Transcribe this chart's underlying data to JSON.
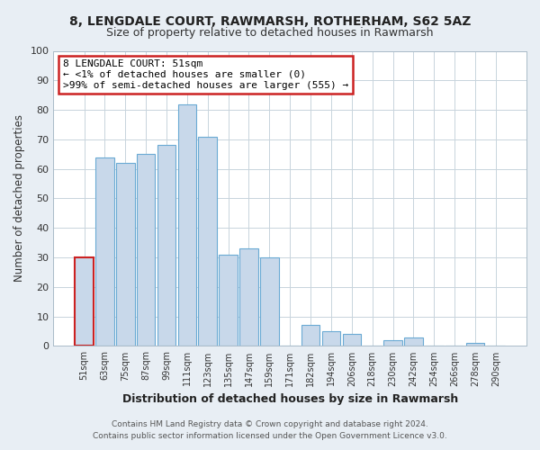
{
  "title": "8, LENGDALE COURT, RAWMARSH, ROTHERHAM, S62 5AZ",
  "subtitle": "Size of property relative to detached houses in Rawmarsh",
  "xlabel": "Distribution of detached houses by size in Rawmarsh",
  "ylabel": "Number of detached properties",
  "bar_labels": [
    "51sqm",
    "63sqm",
    "75sqm",
    "87sqm",
    "99sqm",
    "111sqm",
    "123sqm",
    "135sqm",
    "147sqm",
    "159sqm",
    "171sqm",
    "182sqm",
    "194sqm",
    "206sqm",
    "218sqm",
    "230sqm",
    "242sqm",
    "254sqm",
    "266sqm",
    "278sqm",
    "290sqm"
  ],
  "bar_heights": [
    30,
    64,
    62,
    65,
    68,
    82,
    71,
    31,
    33,
    30,
    0,
    7,
    5,
    4,
    0,
    2,
    3,
    0,
    0,
    1,
    0
  ],
  "bar_color": "#c8d8ea",
  "bar_edge_color": "#6aaad4",
  "highlight_bar_index": 0,
  "highlight_bar_edge_color": "#cc2222",
  "annotation_title": "8 LENGDALE COURT: 51sqm",
  "annotation_line1": "← <1% of detached houses are smaller (0)",
  "annotation_line2": ">99% of semi-detached houses are larger (555) →",
  "annotation_box_facecolor": "#ffffff",
  "annotation_box_edgecolor": "#cc2222",
  "ylim": [
    0,
    100
  ],
  "yticks": [
    0,
    10,
    20,
    30,
    40,
    50,
    60,
    70,
    80,
    90,
    100
  ],
  "footer_line1": "Contains HM Land Registry data © Crown copyright and database right 2024.",
  "footer_line2": "Contains public sector information licensed under the Open Government Licence v3.0.",
  "fig_bg_color": "#e8eef4",
  "plot_bg_color": "#ffffff",
  "grid_color": "#c8d4dc"
}
